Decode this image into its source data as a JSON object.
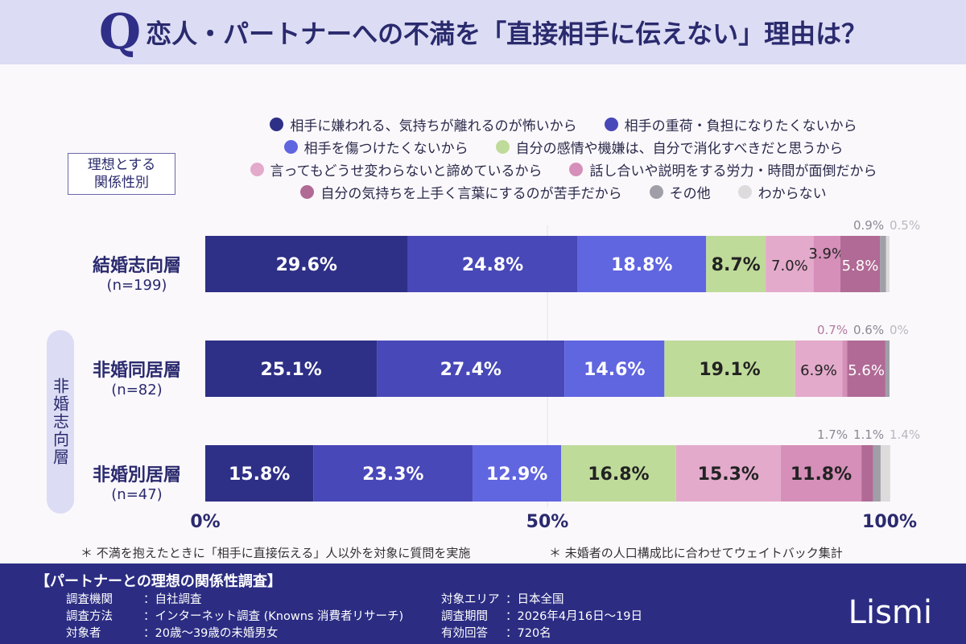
{
  "header": {
    "q": "Q",
    "title": "恋人・パートナーへの不満を「直接相手に伝えない」理由は？"
  },
  "category_box": [
    "理想とする",
    "関係性別"
  ],
  "group_label": "非婚志向層",
  "rows": [
    {
      "name": "結婚志向層",
      "n": "(n=199)"
    },
    {
      "name": "非婚同居層",
      "n": "(n=82)"
    },
    {
      "name": "非婚別居層",
      "n": "(n=47)"
    }
  ],
  "notes": [
    "＊ 不満を抱えたときに「相手に直接伝える」人以外を対象に質問を実施",
    "＊ 未婚者の人口構成比に合わせてウェイトバック集計"
  ],
  "chart_data": {
    "type": "bar",
    "orientation": "horizontal",
    "stacked": true,
    "categories": [
      "結婚志向層",
      "非婚同居層",
      "非婚別居層"
    ],
    "xlim": [
      0,
      100
    ],
    "xticks": [
      "0%",
      "50%",
      "100%"
    ],
    "legend": "top",
    "series": [
      {
        "name": "相手に嫌われる、気持ちが離れるのが怖いから",
        "color": "#2e2f86",
        "values": [
          29.6,
          25.1,
          15.8
        ]
      },
      {
        "name": "相手の重荷・負担になりたくないから",
        "color": "#4848b8",
        "values": [
          24.8,
          27.4,
          23.3
        ]
      },
      {
        "name": "相手を傷つけたくないから",
        "color": "#6065e0",
        "values": [
          18.8,
          14.6,
          12.9
        ]
      },
      {
        "name": "自分の感情や機嫌は、自分で消化すべきだと思うから",
        "color": "#bfdb9a",
        "values": [
          8.7,
          19.1,
          16.8
        ]
      },
      {
        "name": "言ってもどうせ変わらないと諦めているから",
        "color": "#e3aacb",
        "values": [
          7.0,
          6.9,
          15.3
        ]
      },
      {
        "name": "話し合いや説明をする労力・時間が面倒だから",
        "color": "#d58fb9",
        "values": [
          3.9,
          0.7,
          11.8
        ]
      },
      {
        "name": "自分の気持ちを上手く言葉にするのが苦手だから",
        "color": "#b06a95",
        "values": [
          5.8,
          5.6,
          1.7
        ]
      },
      {
        "name": "その他",
        "color": "#a09fa8",
        "values": [
          0.9,
          0.6,
          1.1
        ]
      },
      {
        "name": "わからない",
        "color": "#dddbdb",
        "values": [
          0.5,
          0,
          1.4
        ]
      }
    ]
  },
  "footer": {
    "title": "【パートナーとの理想の関係性調査】",
    "left": [
      {
        "k": "調査機関",
        "v": "：自社調査"
      },
      {
        "k": "調査方法",
        "v": "：インターネット調査 (Knowns 消費者リサーチ)"
      },
      {
        "k": "対象者",
        "v": "：20歳～39歳の未婚男女"
      }
    ],
    "right": [
      {
        "k": "対象エリア",
        "v": "：日本全国"
      },
      {
        "k": "調査期間",
        "v": "：2026年4月16日～19日"
      },
      {
        "k": "有効回答",
        "v": "：720名"
      }
    ],
    "logo": "Lismi"
  }
}
